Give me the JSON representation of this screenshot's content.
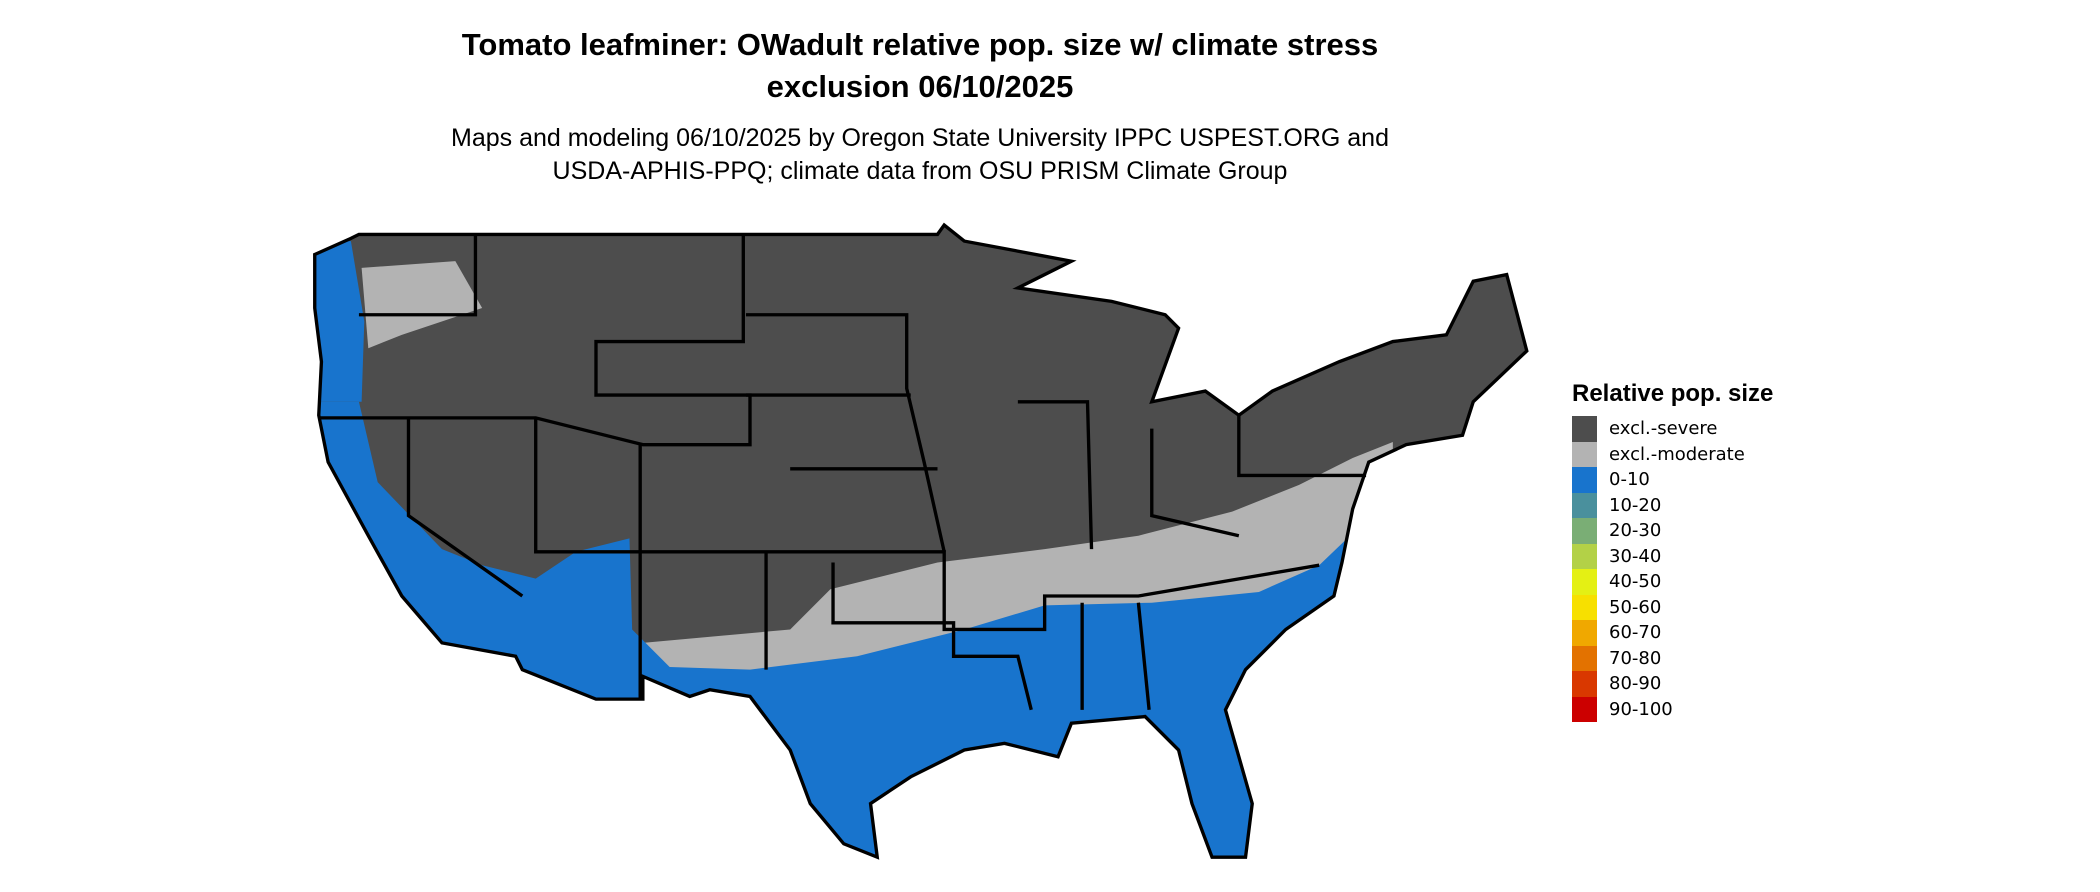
{
  "title": {
    "line1": "Tomato leafminer: OWadult relative pop. size w/ climate stress",
    "line2": "exclusion 06/10/2025"
  },
  "subtitle": {
    "line1": "Maps and modeling 06/10/2025 by Oregon State University IPPC USPEST.ORG and",
    "line2": "USDA-APHIS-PPQ; climate data from OSU PRISM Climate Group"
  },
  "map": {
    "region": "Contiguous United States",
    "colors": {
      "excl_severe": "#4d4d4d",
      "excl_moderate": "#b3b3b3",
      "range_0_10": "#1874cd",
      "border": "#000000"
    }
  },
  "legend": {
    "title": "Relative pop. size",
    "items": [
      {
        "label": "excl.-severe",
        "color": "#4d4d4d"
      },
      {
        "label": "excl.-moderate",
        "color": "#b3b3b3"
      },
      {
        "label": "0-10",
        "color": "#1874cd"
      },
      {
        "label": "10-20",
        "color": "#4a909d"
      },
      {
        "label": "20-30",
        "color": "#7aae75"
      },
      {
        "label": "30-40",
        "color": "#b3d147"
      },
      {
        "label": "40-50",
        "color": "#e4f014"
      },
      {
        "label": "50-60",
        "color": "#f7e000"
      },
      {
        "label": "60-70",
        "color": "#f0a800"
      },
      {
        "label": "70-80",
        "color": "#e37200"
      },
      {
        "label": "80-90",
        "color": "#d93800"
      },
      {
        "label": "90-100",
        "color": "#cc0000"
      }
    ]
  }
}
